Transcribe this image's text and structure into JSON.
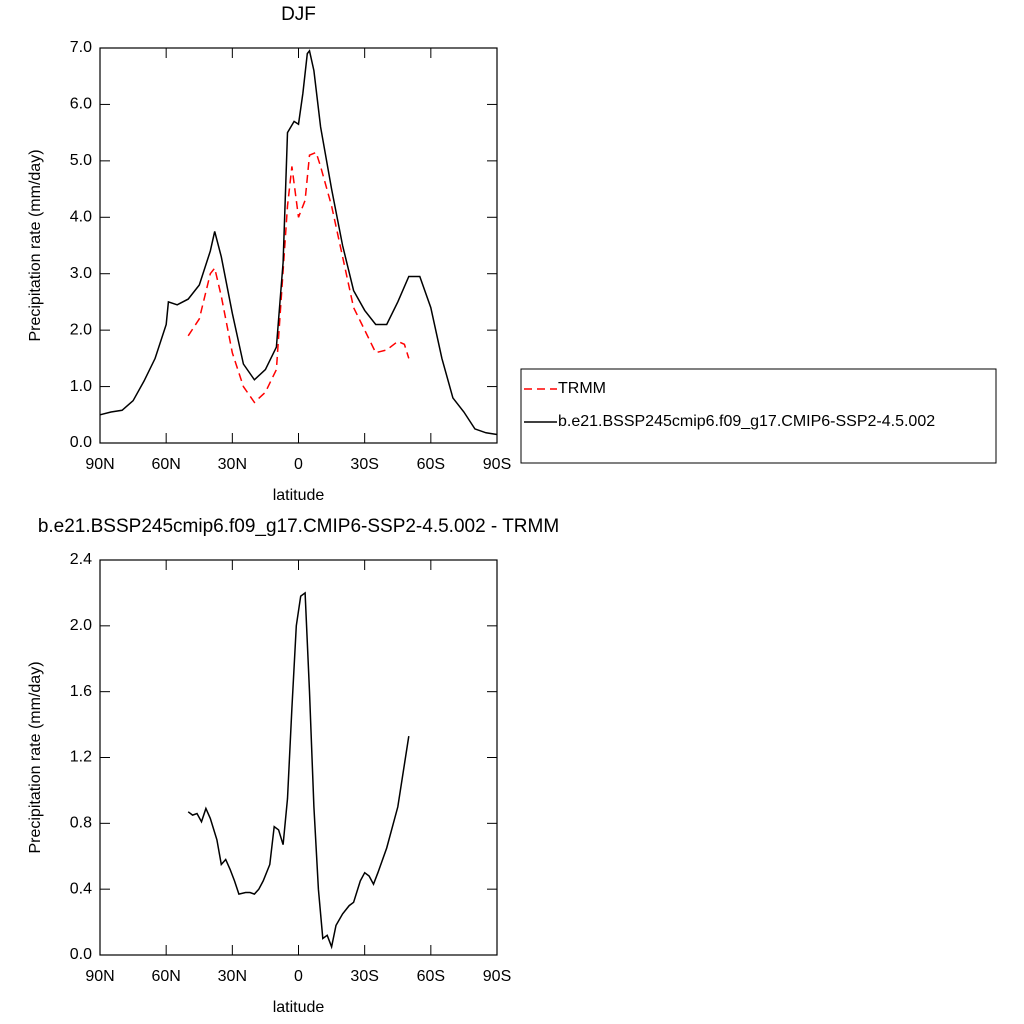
{
  "chart_data": [
    {
      "type": "line",
      "title": "DJF",
      "xlabel": "latitude",
      "ylabel": "Precipitation rate (mm/day)",
      "xlim": [
        90,
        -90
      ],
      "xticks": [
        {
          "value": 90,
          "label": "90N"
        },
        {
          "value": 60,
          "label": "60N"
        },
        {
          "value": 30,
          "label": "30N"
        },
        0,
        {
          "value": -30,
          "label": "30S"
        },
        {
          "value": -60,
          "label": "60S"
        },
        {
          "value": -90,
          "label": "90S"
        }
      ],
      "ylim": [
        0,
        7
      ],
      "yticks": [
        {
          "value": 0,
          "label": "0.0"
        },
        {
          "value": 1,
          "label": "1.0"
        },
        {
          "value": 2,
          "label": "2.0"
        },
        {
          "value": 3,
          "label": "3.0"
        },
        {
          "value": 4,
          "label": "4.0"
        },
        {
          "value": 5,
          "label": "5.0"
        },
        {
          "value": 6,
          "label": "6.0"
        },
        {
          "value": 7,
          "label": "7.0"
        }
      ],
      "legend": "right",
      "series": [
        {
          "name": "TRMM",
          "color": "#ff0000",
          "dash": true,
          "x": [
            50,
            45,
            40,
            38,
            35,
            30,
            25,
            20,
            15,
            10,
            5,
            3,
            0,
            -3,
            -5,
            -8,
            -10,
            -15,
            -20,
            -25,
            -30,
            -35,
            -40,
            -45,
            -48,
            -50
          ],
          "values": [
            1.9,
            2.2,
            3.0,
            3.1,
            2.6,
            1.6,
            1.0,
            0.72,
            0.9,
            1.3,
            4.2,
            4.9,
            4.0,
            4.3,
            5.1,
            5.15,
            4.9,
            4.2,
            3.3,
            2.4,
            2.0,
            1.6,
            1.65,
            1.8,
            1.75,
            1.5
          ]
        },
        {
          "name": "b.e21.BSSP245cmip6.f09_g17.CMIP6-SSP2-4.5.002",
          "color": "#000000",
          "dash": false,
          "x": [
            90,
            85,
            80,
            75,
            70,
            65,
            60,
            59,
            55,
            50,
            45,
            40,
            38,
            35,
            30,
            25,
            20,
            15,
            10,
            7,
            5,
            2,
            0,
            -2,
            -4,
            -5,
            -7,
            -10,
            -15,
            -20,
            -25,
            -30,
            -35,
            -40,
            -45,
            -50,
            -55,
            -60,
            -65,
            -70,
            -75,
            -80,
            -85,
            -90
          ],
          "values": [
            0.5,
            0.55,
            0.58,
            0.75,
            1.1,
            1.5,
            2.1,
            2.5,
            2.45,
            2.55,
            2.8,
            3.4,
            3.75,
            3.3,
            2.3,
            1.4,
            1.12,
            1.3,
            1.7,
            3.2,
            5.5,
            5.7,
            5.65,
            6.2,
            6.9,
            6.95,
            6.6,
            5.6,
            4.5,
            3.5,
            2.7,
            2.35,
            2.1,
            2.1,
            2.5,
            2.95,
            2.95,
            2.4,
            1.5,
            0.8,
            0.55,
            0.25,
            0.18,
            0.15
          ]
        }
      ]
    },
    {
      "type": "line",
      "title": "b.e21.BSSP245cmip6.f09_g17.CMIP6-SSP2-4.5.002 - TRMM",
      "xlabel": "latitude",
      "ylabel": "Precipitation rate (mm/day)",
      "xlim": [
        90,
        -90
      ],
      "xticks": [
        {
          "value": 90,
          "label": "90N"
        },
        {
          "value": 60,
          "label": "60N"
        },
        {
          "value": 30,
          "label": "30N"
        },
        0,
        {
          "value": -30,
          "label": "30S"
        },
        {
          "value": -60,
          "label": "60S"
        },
        {
          "value": -90,
          "label": "90S"
        }
      ],
      "ylim": [
        0,
        2.4
      ],
      "yticks": [
        {
          "value": 0,
          "label": "0.0"
        },
        0.4,
        0.8,
        1.2,
        1.6,
        {
          "value": 2,
          "label": "2.0"
        },
        2.4
      ],
      "series": [
        {
          "color": "#000000",
          "dash": false,
          "x": [
            50,
            48,
            46,
            44,
            42,
            40,
            37,
            35,
            33,
            31,
            29,
            27,
            24,
            22,
            20,
            18,
            16,
            13,
            11,
            9,
            7,
            5,
            3,
            1,
            -1,
            -3,
            -5,
            -7,
            -9,
            -11,
            -13,
            -15,
            -17,
            -20,
            -23,
            -25,
            -28,
            -30,
            -32,
            -34,
            -36,
            -40,
            -45,
            -50
          ],
          "values": [
            0.87,
            0.85,
            0.86,
            0.81,
            0.89,
            0.83,
            0.7,
            0.55,
            0.58,
            0.52,
            0.45,
            0.37,
            0.38,
            0.38,
            0.37,
            0.4,
            0.45,
            0.55,
            0.78,
            0.76,
            0.67,
            0.95,
            1.5,
            2.0,
            2.18,
            2.2,
            1.6,
            0.9,
            0.4,
            0.1,
            0.12,
            0.05,
            0.18,
            0.25,
            0.3,
            0.32,
            0.45,
            0.5,
            0.48,
            0.43,
            0.5,
            0.65,
            0.9,
            1.33
          ]
        }
      ]
    }
  ]
}
